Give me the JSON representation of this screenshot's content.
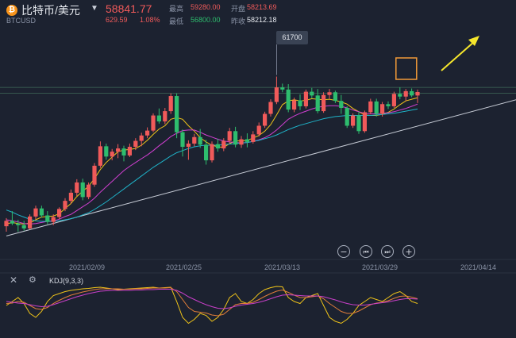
{
  "header": {
    "coin_icon": "bitcoin-icon",
    "pair": "比特币/美元",
    "symbol": "BTCUSD",
    "price": "58841.77",
    "change": "629.59",
    "change_pct": "1.08%",
    "high_label": "最高",
    "high": "59280.00",
    "low_label": "最低",
    "low": "56800.00",
    "open_label": "开盘",
    "open": "58213.69",
    "prev_label": "昨收",
    "prev": "58212.18"
  },
  "colors": {
    "up": "#f05a5a",
    "down": "#2ebd6e",
    "bg": "#1c2230",
    "ma_yellow": "#f0c419",
    "ma_magenta": "#d13fd1",
    "ma_cyan": "#1fb3c8"
  },
  "chart_data": [
    {
      "type": "candlestick",
      "x_ticks": [
        "2021/02/09",
        "2021/02/25",
        "2021/03/13",
        "2021/03/29",
        "2021/04/14"
      ],
      "ylim": [
        28000,
        70000
      ],
      "max_annotation": "61700",
      "candles": [
        [
          34000,
          35500,
          33000,
          35000
        ],
        [
          35000,
          36800,
          34200,
          34500
        ],
        [
          34500,
          35200,
          33000,
          34200
        ],
        [
          34200,
          35000,
          33200,
          33600
        ],
        [
          33600,
          36200,
          33400,
          35800
        ],
        [
          35800,
          37800,
          35300,
          37300
        ],
        [
          37300,
          37800,
          35600,
          36000
        ],
        [
          36000,
          36800,
          34400,
          34800
        ],
        [
          34800,
          36200,
          34200,
          35700
        ],
        [
          35700,
          37500,
          35300,
          37200
        ],
        [
          37200,
          39200,
          36800,
          38700
        ],
        [
          38700,
          40800,
          38200,
          40200
        ],
        [
          40200,
          42700,
          39600,
          42100
        ],
        [
          42100,
          42800,
          38800,
          39400
        ],
        [
          39400,
          42100,
          39000,
          41700
        ],
        [
          41700,
          45700,
          41300,
          45200
        ],
        [
          45200,
          49700,
          44800,
          48800
        ],
        [
          48800,
          49300,
          46300,
          46900
        ],
        [
          46900,
          48300,
          46200,
          47800
        ],
        [
          47800,
          49200,
          46600,
          48400
        ],
        [
          48400,
          48900,
          46000,
          47100
        ],
        [
          47100,
          49300,
          46800,
          48700
        ],
        [
          48700,
          50300,
          48100,
          49800
        ],
        [
          49800,
          51300,
          48800,
          50800
        ],
        [
          50800,
          52300,
          50300,
          51700
        ],
        [
          51700,
          54900,
          51400,
          54500
        ],
        [
          54500,
          55800,
          53000,
          53400
        ],
        [
          53400,
          55900,
          52900,
          55300
        ],
        [
          55300,
          58600,
          54800,
          58100
        ],
        [
          58100,
          58600,
          50300,
          51400
        ],
        [
          51400,
          51900,
          46900,
          48700
        ],
        [
          48700,
          49900,
          46300,
          49300
        ],
        [
          49300,
          51100,
          48800,
          50500
        ],
        [
          50500,
          52000,
          48500,
          49100
        ],
        [
          49100,
          50000,
          45400,
          46200
        ],
        [
          46200,
          49700,
          45800,
          49200
        ],
        [
          49200,
          50200,
          47800,
          48400
        ],
        [
          48400,
          50300,
          47900,
          49800
        ],
        [
          49800,
          52200,
          49300,
          51600
        ],
        [
          51600,
          52400,
          48600,
          49100
        ],
        [
          49100,
          50700,
          48500,
          50100
        ],
        [
          50100,
          51200,
          48600,
          49600
        ],
        [
          49600,
          51600,
          49300,
          51000
        ],
        [
          51000,
          53200,
          50600,
          52600
        ],
        [
          52600,
          55200,
          52200,
          54800
        ],
        [
          54800,
          57500,
          54300,
          57000
        ],
        [
          57000,
          61700,
          56600,
          59700
        ],
        [
          59700,
          60400,
          58800,
          59300
        ],
        [
          59300,
          60300,
          55100,
          55600
        ],
        [
          55600,
          57800,
          55100,
          57300
        ],
        [
          57300,
          58400,
          55500,
          56200
        ],
        [
          56200,
          59300,
          55800,
          58900
        ],
        [
          58900,
          59600,
          57700,
          58200
        ],
        [
          58200,
          59400,
          54900,
          55300
        ],
        [
          55300,
          58800,
          55000,
          58300
        ],
        [
          58300,
          59400,
          57600,
          58800
        ],
        [
          58800,
          59100,
          56800,
          57200
        ],
        [
          57200,
          58300,
          54800,
          55900
        ],
        [
          55900,
          56200,
          52200,
          52600
        ],
        [
          52600,
          54900,
          52200,
          54500
        ],
        [
          54500,
          55200,
          51100,
          51600
        ],
        [
          51600,
          55400,
          51300,
          55100
        ],
        [
          55100,
          57600,
          54700,
          57100
        ],
        [
          57100,
          57600,
          54300,
          54800
        ],
        [
          54800,
          57000,
          54300,
          56600
        ],
        [
          56600,
          57100,
          55700,
          56200
        ],
        [
          56200,
          58900,
          55900,
          58500
        ],
        [
          58500,
          59700,
          57500,
          58000
        ],
        [
          58000,
          59400,
          57200,
          59000
        ],
        [
          59000,
          59500,
          57900,
          58200
        ],
        [
          58200,
          59300,
          56800,
          58841.77
        ]
      ],
      "lines": [
        {
          "color": "#f0c419",
          "values": [
            34400,
            34700,
            34500,
            34400,
            34600,
            35200,
            35700,
            35800,
            35900,
            36300,
            37300,
            38200,
            39500,
            40500,
            41400,
            42800,
            44500,
            45800,
            46800,
            47800,
            48100,
            48200,
            48400,
            49000,
            49900,
            51000,
            52000,
            52600,
            53800,
            54100,
            53800,
            52600,
            51600,
            50400,
            49600,
            49000,
            48700,
            48600,
            49300,
            49800,
            49800,
            49900,
            50300,
            50800,
            51600,
            52800,
            54600,
            56500,
            57200,
            57400,
            57200,
            57300,
            57600,
            57500,
            57400,
            57500,
            57300,
            57000,
            56600,
            55800,
            55200,
            54600,
            54500,
            54500,
            54700,
            55100,
            55700,
            56500,
            57200,
            57500,
            57800
          ]
        },
        {
          "color": "#d13fd1",
          "values": [
            35200,
            35000,
            34800,
            34500,
            34400,
            34500,
            34700,
            34900,
            35000,
            35300,
            35800,
            36200,
            36900,
            37600,
            38300,
            39200,
            40300,
            41300,
            42300,
            43300,
            44300,
            45100,
            45800,
            46500,
            47200,
            48000,
            48900,
            49700,
            50600,
            51200,
            51700,
            51800,
            51800,
            51400,
            50900,
            50500,
            50100,
            49800,
            49600,
            49500,
            49400,
            49500,
            49700,
            50000,
            50400,
            51000,
            51800,
            52800,
            53800,
            54400,
            54900,
            55300,
            55700,
            56000,
            56200,
            56300,
            56300,
            56200,
            55900,
            55500,
            55200,
            54900,
            54800,
            54800,
            54900,
            55000,
            55200,
            55500,
            55800,
            56200,
            56600
          ]
        },
        {
          "color": "#1fb3c8",
          "values": [
            37000,
            36600,
            36100,
            35700,
            35300,
            35000,
            34900,
            34900,
            34900,
            35000,
            35200,
            35400,
            35700,
            36100,
            36500,
            37100,
            37800,
            38500,
            39300,
            40100,
            40900,
            41700,
            42500,
            43300,
            44100,
            44900,
            45600,
            46300,
            47000,
            47600,
            48000,
            48400,
            48700,
            48900,
            49000,
            49000,
            49000,
            49100,
            49200,
            49300,
            49400,
            49500,
            49700,
            49900,
            50200,
            50500,
            50900,
            51400,
            51900,
            52300,
            52700,
            53000,
            53300,
            53600,
            53900,
            54100,
            54300,
            54400,
            54500,
            54500,
            54500,
            54500,
            54500,
            54600,
            54700,
            54800,
            54900,
            55100,
            55300,
            55500,
            55700
          ]
        }
      ],
      "trendline": {
        "start": [
          0,
          32200
        ],
        "end": [
          95,
          59800
        ]
      },
      "horizontal_lines": [
        59700,
        58600
      ]
    },
    {
      "type": "line",
      "legend": "KDJ(9,3,3)",
      "ylim": [
        -20,
        120
      ],
      "series": [
        {
          "name": "K",
          "color": "#f0c419",
          "values": [
            50,
            60,
            70,
            55,
            30,
            20,
            35,
            60,
            75,
            80,
            85,
            88,
            90,
            92,
            93,
            95,
            96,
            94,
            92,
            90,
            91,
            92,
            93,
            94,
            95,
            96,
            94,
            95,
            96,
            60,
            20,
            5,
            15,
            30,
            25,
            10,
            20,
            40,
            70,
            80,
            60,
            55,
            65,
            80,
            90,
            95,
            98,
            97,
            70,
            60,
            55,
            70,
            75,
            80,
            50,
            20,
            10,
            5,
            15,
            30,
            50,
            60,
            70,
            65,
            60,
            70,
            80,
            85,
            75,
            60,
            55
          ]
        },
        {
          "name": "D",
          "color": "#e07d3a",
          "values": [
            55,
            56,
            60,
            58,
            50,
            42,
            40,
            45,
            55,
            63,
            70,
            76,
            80,
            84,
            87,
            90,
            92,
            92,
            92,
            92,
            91,
            91,
            92,
            92,
            93,
            94,
            94,
            94,
            95,
            85,
            65,
            45,
            35,
            33,
            31,
            26,
            24,
            28,
            40,
            52,
            55,
            55,
            58,
            65,
            73,
            80,
            86,
            89,
            83,
            76,
            70,
            70,
            72,
            74,
            67,
            55,
            45,
            35,
            30,
            30,
            36,
            44,
            52,
            56,
            58,
            62,
            68,
            73,
            74,
            71,
            67
          ]
        },
        {
          "name": "J",
          "color": "#c93fc9",
          "values": [
            60,
            58,
            56,
            55,
            52,
            49,
            47,
            48,
            52,
            57,
            62,
            67,
            72,
            76,
            80,
            83,
            86,
            87,
            88,
            88,
            88,
            88,
            89,
            89,
            90,
            90,
            91,
            91,
            91,
            88,
            81,
            72,
            65,
            58,
            52,
            47,
            43,
            42,
            44,
            48,
            51,
            53,
            55,
            58,
            62,
            67,
            72,
            76,
            77,
            76,
            75,
            74,
            74,
            74,
            72,
            68,
            64,
            59,
            55,
            52,
            51,
            51,
            53,
            55,
            57,
            59,
            62,
            65,
            67,
            67,
            66
          ]
        }
      ]
    }
  ],
  "controls": {
    "zoom_out": "−",
    "prev_icon_char": "⏮",
    "next_icon_char": "⏭",
    "zoom_in": "+",
    "zoom_out_icon": "minus-circle-icon",
    "prev_icon": "skip-back-icon",
    "next_icon": "skip-forward-icon",
    "zoom_in_icon": "plus-circle-icon"
  },
  "kdj_panel": {
    "label": "KDJ(9,3,3)",
    "close_char": "✕",
    "gear_char": "⚙"
  }
}
